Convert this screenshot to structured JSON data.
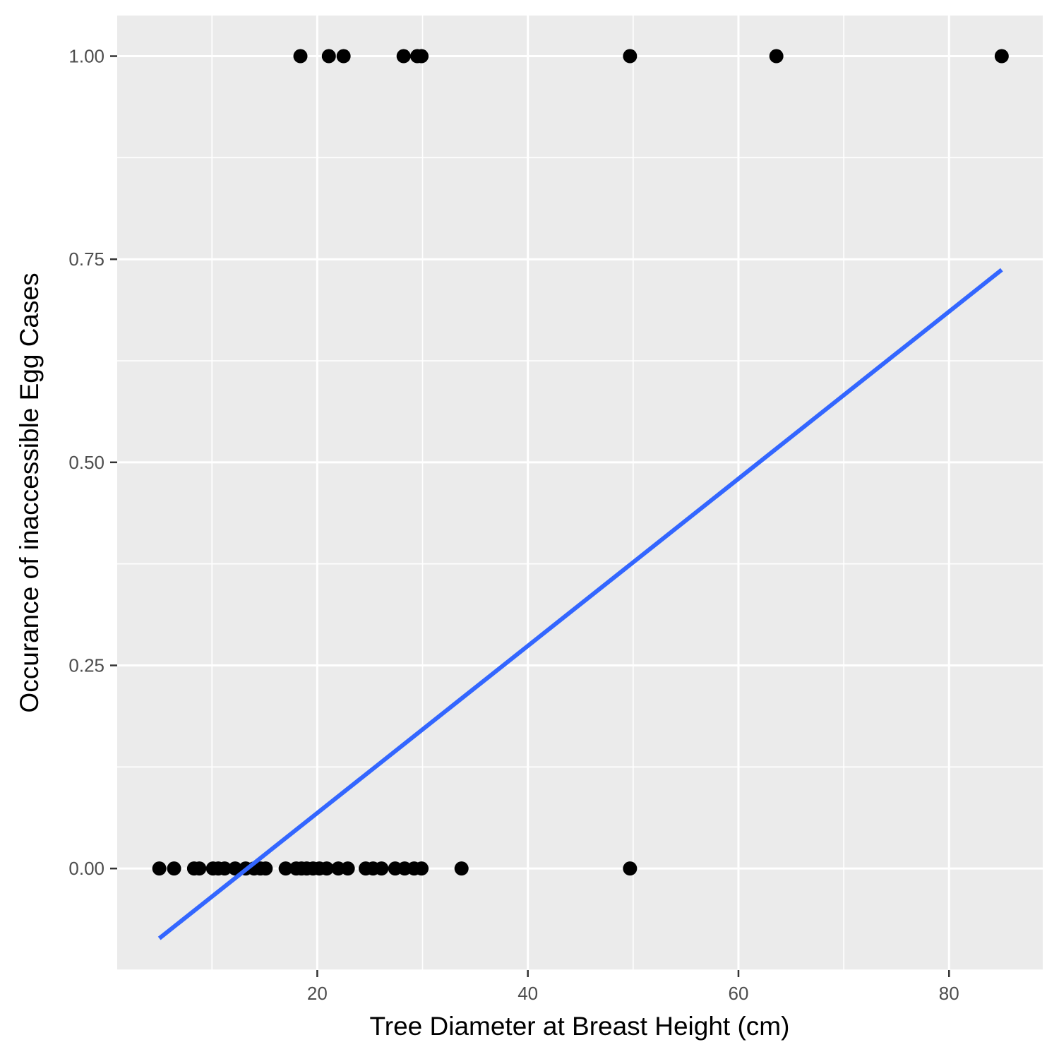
{
  "chart_data": {
    "type": "scatter",
    "title": "",
    "xlabel": "Tree Diameter at Breast Height (cm)",
    "ylabel": "Occurance of inaccessible Egg Cases",
    "xlim": [
      1.0,
      88.9
    ],
    "ylim": [
      -0.125,
      1.05
    ],
    "x_ticks": [
      20,
      40,
      60,
      80
    ],
    "x_tick_labels": [
      "20",
      "40",
      "60",
      "80"
    ],
    "y_ticks": [
      0.0,
      0.25,
      0.5,
      0.75,
      1.0
    ],
    "y_tick_labels": [
      "0.00",
      "0.25",
      "0.50",
      "0.75",
      "1.00"
    ],
    "grid": true,
    "legend": "none",
    "colors": {
      "panel_background": "#ebebeb",
      "grid": "#ffffff",
      "points": "#000000",
      "fit_line": "#3366ff",
      "tick_label": "#4d4d4d",
      "tick_mark": "#333333"
    },
    "series": [
      {
        "kind": "points",
        "x": [
          18.4,
          21.1,
          22.5,
          28.2,
          29.5,
          29.9,
          49.7,
          63.6,
          85.0,
          5.0,
          6.4,
          8.3,
          8.8,
          10.1,
          10.6,
          11.2,
          12.2,
          13.2,
          14.0,
          14.6,
          15.1,
          17.0,
          18.0,
          18.5,
          19.0,
          19.6,
          20.2,
          20.9,
          22.0,
          22.9,
          24.6,
          25.3,
          26.1,
          27.4,
          28.3,
          29.2,
          29.9,
          33.7,
          49.7
        ],
        "y": [
          1,
          1,
          1,
          1,
          1,
          1,
          1,
          1,
          1,
          0,
          0,
          0,
          0,
          0,
          0,
          0,
          0,
          0,
          0,
          0,
          0,
          0,
          0,
          0,
          0,
          0,
          0,
          0,
          0,
          0,
          0,
          0,
          0,
          0,
          0,
          0,
          0,
          0,
          0
        ]
      },
      {
        "kind": "line",
        "x": [
          5.0,
          85.0
        ],
        "y": [
          -0.086,
          0.737
        ]
      }
    ]
  }
}
